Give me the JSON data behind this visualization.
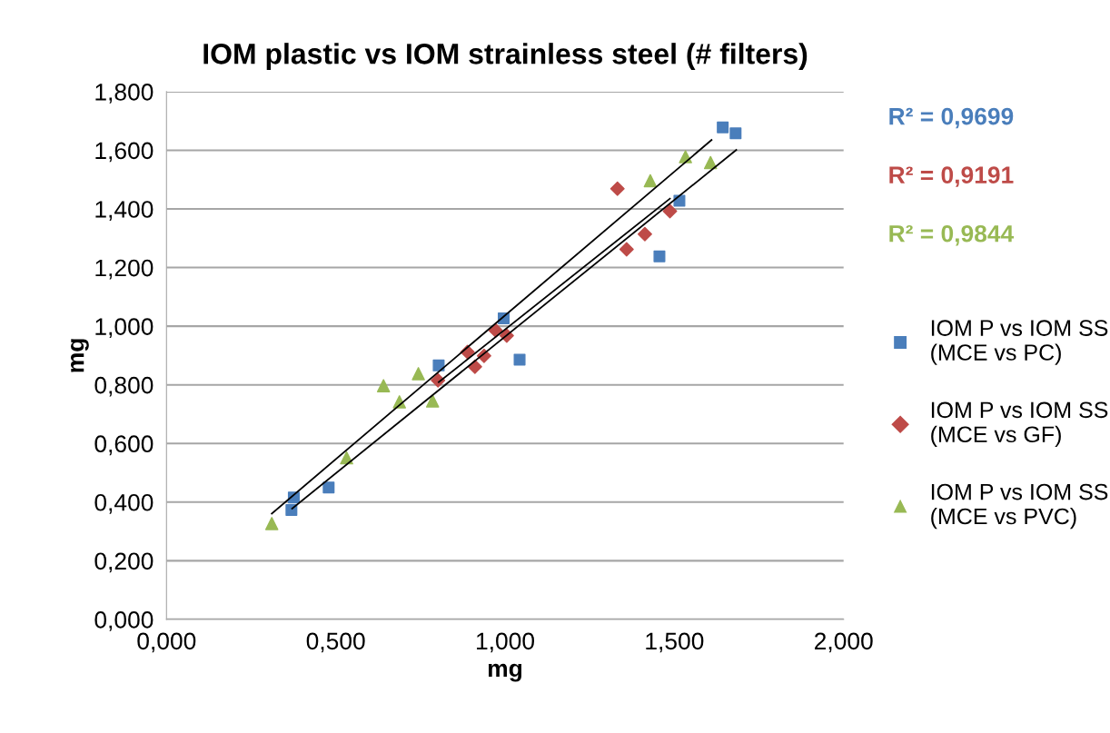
{
  "chart_data": {
    "type": "scatter",
    "title": "IOM plastic vs IOM strainless steel (# filters)",
    "xlabel": "mg",
    "ylabel": "mg",
    "xlim": [
      0,
      2
    ],
    "xticks": [
      {
        "value": 0,
        "label": "0,000"
      },
      {
        "value": 0.5,
        "label": "0,500"
      },
      {
        "value": 1,
        "label": "1,000"
      },
      {
        "value": 1.5,
        "label": "1,500"
      },
      {
        "value": 2,
        "label": "2,000"
      }
    ],
    "ylim": [
      0,
      1.8
    ],
    "yticks": [
      {
        "value": 0,
        "label": "0,000"
      },
      {
        "value": 0.2,
        "label": "0,200"
      },
      {
        "value": 0.4,
        "label": "0,400"
      },
      {
        "value": 0.6,
        "label": "0,600"
      },
      {
        "value": 0.8,
        "label": "0,800"
      },
      {
        "value": 1,
        "label": "1,000"
      },
      {
        "value": 1.2,
        "label": "1,200"
      },
      {
        "value": 1.4,
        "label": "1,400"
      },
      {
        "value": 1.6,
        "label": "1,600"
      },
      {
        "value": 1.8,
        "label": "1,800"
      }
    ],
    "grid": "y",
    "legend": "right",
    "annotations": [
      "R² = 0,9699",
      "R² = 0,9191",
      "R² = 0,9844"
    ],
    "series": [
      {
        "name": "IOM P vs IOM SS\n(MCE vs PC)",
        "color": "#4a7ebb",
        "marker": "square",
        "x": [
          0.369,
          0.376,
          0.479,
          0.804,
          0.996,
          1.043,
          1.456,
          1.515,
          1.643,
          1.681
        ],
        "values": [
          0.373,
          0.416,
          0.45,
          0.866,
          1.027,
          0.886,
          1.238,
          1.428,
          1.678,
          1.658
        ]
      },
      {
        "name": "IOM P vs IOM SS\n(MCE vs GF)",
        "color": "#be4b48",
        "marker": "diamond",
        "x": [
          0.802,
          0.889,
          0.911,
          0.938,
          0.972,
          1.005,
          1.332,
          1.359,
          1.413,
          1.487
        ],
        "values": [
          0.815,
          0.912,
          0.862,
          0.899,
          0.986,
          0.968,
          1.469,
          1.262,
          1.314,
          1.392
        ]
      },
      {
        "name": "IOM P vs IOM SS\n(MCE vs PVC)",
        "color": "#98b954",
        "marker": "triangle",
        "x": [
          0.311,
          0.532,
          0.641,
          0.688,
          0.744,
          0.786,
          1.429,
          1.533,
          1.607
        ],
        "values": [
          0.327,
          0.551,
          0.797,
          0.742,
          0.838,
          0.745,
          1.496,
          1.578,
          1.558
        ]
      },
      {
        "type": "line",
        "color": "#000000",
        "x": [
          0.371,
          1.683
        ],
        "values": [
          0.378,
          1.601
        ]
      },
      {
        "type": "line",
        "color": "#000000",
        "x": [
          0.804,
          1.487
        ],
        "values": [
          0.809,
          1.435
        ]
      },
      {
        "type": "line",
        "color": "#000000",
        "x": [
          0.311,
          1.61
        ],
        "values": [
          0.361,
          1.635
        ]
      }
    ]
  }
}
